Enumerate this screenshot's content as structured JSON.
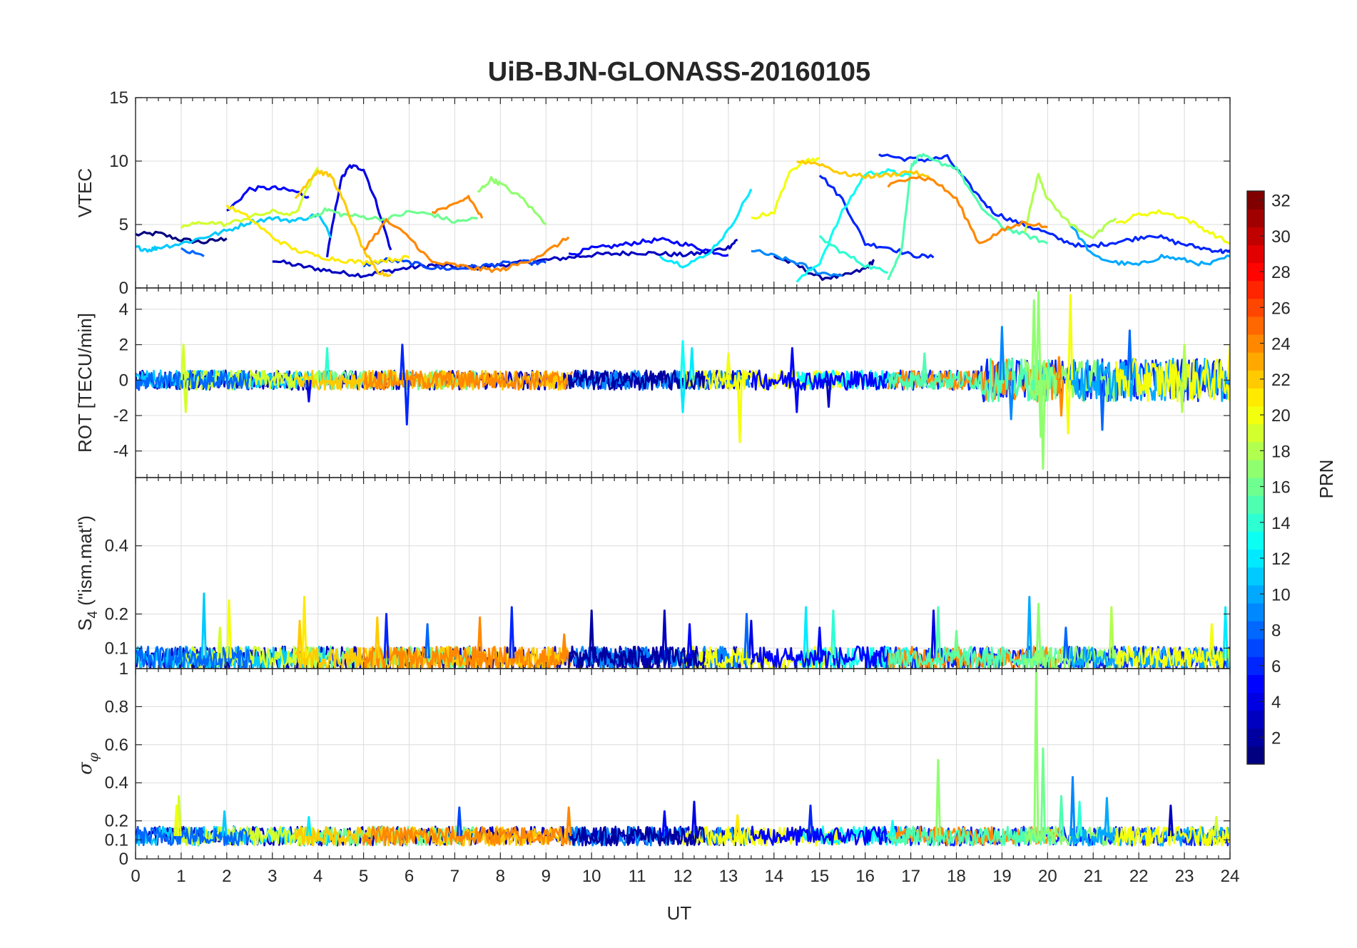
{
  "title": "UiB-BJN-GLONASS-20160105",
  "colorbar": {
    "label": "PRN",
    "range": [
      1,
      32
    ],
    "ticks": [
      2,
      4,
      6,
      8,
      10,
      12,
      14,
      16,
      18,
      20,
      22,
      24,
      26,
      28,
      30,
      32
    ],
    "colormap": "jet"
  },
  "chart_data": [
    {
      "type": "line",
      "id": "vtec",
      "ylabel": "VTEC",
      "ylim": [
        0,
        15
      ],
      "yticks": [
        0,
        5,
        10,
        15
      ],
      "grid": true,
      "series": [
        {
          "prn": 1,
          "x": [
            0,
            0.5,
            1,
            1.5,
            2
          ],
          "y": [
            4.2,
            4.3,
            3.8,
            3.6,
            3.9
          ]
        },
        {
          "prn": 3,
          "x": [
            3,
            3.5,
            4,
            4.5,
            5,
            5.5,
            6,
            6.5,
            7,
            7.5,
            8,
            8.5,
            9,
            9.5,
            10,
            10.5,
            11,
            11.5,
            12,
            12.5,
            13,
            13.2
          ],
          "y": [
            2.2,
            1.8,
            1.5,
            1.2,
            1.0,
            1.3,
            1.6,
            1.8,
            1.7,
            1.6,
            1.8,
            2.0,
            2.2,
            2.4,
            2.6,
            2.7,
            2.8,
            2.7,
            2.6,
            2.8,
            3.2,
            3.8
          ]
        },
        {
          "prn": 2,
          "x": [
            14,
            14.5,
            15,
            15.5,
            16,
            16.2
          ],
          "y": [
            2.5,
            1.8,
            0.8,
            0.9,
            1.5,
            2.2
          ]
        },
        {
          "prn": 4,
          "x": [
            4.2,
            4.5,
            4.7,
            5,
            5.3,
            5.6
          ],
          "y": [
            2.5,
            8.5,
            9.6,
            9.4,
            6.5,
            3.0
          ]
        },
        {
          "prn": 5,
          "x": [
            2,
            2.5,
            3,
            3.5,
            3.8
          ],
          "y": [
            6.0,
            7.8,
            7.9,
            7.6,
            7.2
          ]
        },
        {
          "prn": 5,
          "x": [
            9.5,
            10,
            10.5,
            11,
            11.5,
            12,
            12.5,
            13
          ],
          "y": [
            2.6,
            3.1,
            3.3,
            3.6,
            3.8,
            3.5,
            3.0,
            2.6
          ]
        },
        {
          "prn": 6,
          "x": [
            15,
            15.5,
            16,
            16.5,
            17,
            17.5
          ],
          "y": [
            9.0,
            7.0,
            3.5,
            3.2,
            2.6,
            2.4
          ]
        },
        {
          "prn": 6,
          "x": [
            16.3,
            16.8,
            17.3,
            17.8,
            18.3,
            18.8,
            19.3,
            19.8,
            20.3,
            20.8,
            21.3,
            21.8,
            22.3,
            22.8,
            23.3,
            23.8,
            24
          ],
          "y": [
            10.6,
            10.2,
            10.1,
            10.3,
            8.0,
            6.0,
            5.2,
            4.6,
            3.8,
            3.2,
            3.5,
            3.8,
            4.2,
            3.6,
            3.2,
            2.9,
            2.8
          ]
        },
        {
          "prn": 7,
          "x": [
            5,
            5.5,
            6,
            6.5,
            7,
            7.5,
            8,
            8.5,
            9
          ],
          "y": [
            1.8,
            2.2,
            2.0,
            1.6,
            1.5,
            1.7,
            1.9,
            2.0,
            2.0
          ]
        },
        {
          "prn": 8,
          "x": [
            1,
            1.5
          ],
          "y": [
            3.0,
            2.5
          ]
        },
        {
          "prn": 9,
          "x": [
            13.5,
            14,
            14.5,
            15,
            15.5
          ],
          "y": [
            3.0,
            2.5,
            2.0,
            1.2,
            1.0
          ]
        },
        {
          "prn": 10,
          "x": [
            20.5,
            21,
            21.5,
            22,
            22.5,
            23,
            23.5,
            24
          ],
          "y": [
            5.0,
            2.5,
            2.0,
            1.8,
            2.5,
            2.2,
            1.8,
            2.5
          ]
        },
        {
          "prn": 11,
          "x": [
            0,
            0.3,
            0.5,
            1,
            1.5,
            2,
            2.5,
            3,
            3.5,
            4,
            4.3
          ],
          "y": [
            3.2,
            3.0,
            3.2,
            3.5,
            4.0,
            4.5,
            5.2,
            5.5,
            5.3,
            5.8,
            4.0
          ]
        },
        {
          "prn": 12,
          "x": [
            11.5,
            12,
            12.5,
            13,
            13.5
          ],
          "y": [
            2.5,
            1.8,
            2.5,
            4.5,
            7.8
          ]
        },
        {
          "prn": 13,
          "x": [
            14.5,
            15,
            15.5,
            16,
            16.5,
            17
          ],
          "y": [
            0.5,
            2.0,
            6.0,
            9.0,
            9.2,
            8.8
          ]
        },
        {
          "prn": 14,
          "x": [
            15,
            15.5,
            16,
            16.5
          ],
          "y": [
            4.0,
            2.8,
            1.8,
            1.2
          ]
        },
        {
          "prn": 15,
          "x": [
            16.5,
            16.8,
            17,
            17.2,
            17.5,
            18,
            18.5,
            19,
            19.5,
            20
          ],
          "y": [
            0.8,
            3.0,
            9.5,
            10.5,
            10.0,
            9.5,
            6.5,
            4.8,
            4.2,
            3.5
          ]
        },
        {
          "prn": 16,
          "x": [
            3.8,
            4.2,
            4.5,
            5,
            5.5,
            6,
            6.5,
            7,
            7.5
          ],
          "y": [
            5.5,
            6.2,
            5.8,
            5.6,
            5.4,
            6.0,
            5.8,
            5.2,
            5.5
          ]
        },
        {
          "prn": 17,
          "x": [
            7.5,
            7.8,
            8,
            8.5,
            9
          ],
          "y": [
            7.5,
            8.6,
            8.2,
            7.0,
            5.0
          ]
        },
        {
          "prn": 18,
          "x": [
            19.5,
            19.8,
            20,
            20.5,
            21,
            21.5
          ],
          "y": [
            4.5,
            9.0,
            7.0,
            5.0,
            4.0,
            5.5
          ]
        },
        {
          "prn": 19,
          "x": [
            1,
            1.5,
            2,
            2.5,
            3,
            3.5,
            4
          ],
          "y": [
            4.8,
            5.2,
            5.0,
            5.6,
            6.0,
            5.8,
            9.5
          ]
        },
        {
          "prn": 20,
          "x": [
            13.5,
            14,
            14.3,
            14.6,
            15
          ],
          "y": [
            5.5,
            6.0,
            8.8,
            10.0,
            10.2
          ]
        },
        {
          "prn": 20,
          "x": [
            21.5,
            22,
            22.5,
            23,
            23.5,
            24
          ],
          "y": [
            5.0,
            5.8,
            6.0,
            5.5,
            4.5,
            3.5
          ]
        },
        {
          "prn": 21,
          "x": [
            2,
            2.5,
            3,
            3.5,
            4,
            4.5,
            5,
            5.5,
            6
          ],
          "y": [
            6.5,
            5.5,
            4.0,
            3.0,
            2.5,
            2.2,
            2.0,
            2.2,
            2.4
          ]
        },
        {
          "prn": 22,
          "x": [
            3.5,
            3.8,
            4,
            4.3,
            4.6,
            5,
            5.3,
            5.6
          ],
          "y": [
            7.0,
            8.5,
            9.2,
            8.8,
            6.5,
            3.0,
            1.2,
            1.0
          ]
        },
        {
          "prn": 22,
          "x": [
            14.5,
            15,
            15.5,
            16,
            16.5,
            17,
            17.5
          ],
          "y": [
            10.0,
            9.8,
            9.0,
            8.8,
            8.9,
            9.2,
            8.5
          ]
        },
        {
          "prn": 24,
          "x": [
            5,
            5.5,
            6,
            6.5,
            7,
            7.5,
            8,
            8.5,
            9,
            9.5
          ],
          "y": [
            3.0,
            5.3,
            4.0,
            2.0,
            1.8,
            1.5,
            1.4,
            2.0,
            2.8,
            4.0
          ]
        },
        {
          "prn": 24,
          "x": [
            6.5,
            7,
            7.3,
            7.6
          ],
          "y": [
            6.0,
            6.5,
            7.2,
            5.5
          ]
        },
        {
          "prn": 24,
          "x": [
            16.5,
            17,
            17.5,
            18,
            18.5,
            19,
            19.5,
            20
          ],
          "y": [
            8.0,
            8.8,
            8.5,
            7.0,
            3.5,
            4.5,
            5.2,
            4.8
          ]
        }
      ]
    },
    {
      "type": "line",
      "id": "rot",
      "ylabel": "ROT [TECU/min]",
      "ylim": [
        -5.5,
        5.2
      ],
      "yticks": [
        -4,
        -2,
        0,
        2,
        4
      ],
      "grid": true,
      "spikes": [
        {
          "prn": 6,
          "x": 5.95,
          "y": -2.5
        },
        {
          "prn": 6,
          "x": 5.85,
          "y": 2.0
        },
        {
          "prn": 19,
          "x": 1.05,
          "y": 2.0
        },
        {
          "prn": 19,
          "x": 1.1,
          "y": -1.8
        },
        {
          "prn": 20,
          "x": 13.25,
          "y": -3.5
        },
        {
          "prn": 20,
          "x": 13.0,
          "y": 1.5
        },
        {
          "prn": 12,
          "x": 12.2,
          "y": 1.8
        },
        {
          "prn": 12,
          "x": 12.0,
          "y": -1.8
        },
        {
          "prn": 5,
          "x": 14.5,
          "y": -1.8
        },
        {
          "prn": 5,
          "x": 14.4,
          "y": 1.8
        },
        {
          "prn": 9,
          "x": 19.0,
          "y": 3.0
        },
        {
          "prn": 9,
          "x": 19.2,
          "y": -2.2
        },
        {
          "prn": 17,
          "x": 19.8,
          "y": 5.0
        },
        {
          "prn": 17,
          "x": 19.9,
          "y": -5.0
        },
        {
          "prn": 17,
          "x": 19.7,
          "y": 4.5
        },
        {
          "prn": 17,
          "x": 19.85,
          "y": -3.2
        },
        {
          "prn": 20,
          "x": 20.5,
          "y": 4.8
        },
        {
          "prn": 20,
          "x": 20.45,
          "y": -3.0
        },
        {
          "prn": 8,
          "x": 21.2,
          "y": -2.8
        },
        {
          "prn": 8,
          "x": 21.8,
          "y": 2.8
        },
        {
          "prn": 18,
          "x": 23.0,
          "y": 2.0
        },
        {
          "prn": 18,
          "x": 22.95,
          "y": -1.8
        },
        {
          "prn": 24,
          "x": 20.3,
          "y": -2.0
        },
        {
          "prn": 24,
          "x": 20.25,
          "y": 1.3
        },
        {
          "prn": 4,
          "x": 3.8,
          "y": -1.2
        },
        {
          "prn": 14,
          "x": 4.2,
          "y": 1.8
        },
        {
          "prn": 13,
          "x": 12.0,
          "y": 2.2
        },
        {
          "prn": 15,
          "x": 17.3,
          "y": 1.5
        },
        {
          "prn": 21,
          "x": 24.0,
          "y": 2.0
        },
        {
          "prn": 3,
          "x": 15.2,
          "y": -1.5
        }
      ]
    },
    {
      "type": "line",
      "id": "s4",
      "ylabel": "S₄ (\"ism.mat\")",
      "ylim": [
        0.04,
        0.6
      ],
      "yticks": [
        0.1,
        0.2,
        0.4
      ],
      "grid": true,
      "spikes": [
        {
          "prn": 11,
          "x": 1.5,
          "y": 0.26
        },
        {
          "prn": 20,
          "x": 2.05,
          "y": 0.24
        },
        {
          "prn": 19,
          "x": 1.85,
          "y": 0.16
        },
        {
          "prn": 21,
          "x": 3.7,
          "y": 0.25
        },
        {
          "prn": 22,
          "x": 3.6,
          "y": 0.18
        },
        {
          "prn": 6,
          "x": 5.5,
          "y": 0.2
        },
        {
          "prn": 22,
          "x": 5.3,
          "y": 0.19
        },
        {
          "prn": 8,
          "x": 6.4,
          "y": 0.17
        },
        {
          "prn": 24,
          "x": 7.55,
          "y": 0.19
        },
        {
          "prn": 6,
          "x": 8.25,
          "y": 0.22
        },
        {
          "prn": 2,
          "x": 10.0,
          "y": 0.21
        },
        {
          "prn": 3,
          "x": 11.6,
          "y": 0.21
        },
        {
          "prn": 5,
          "x": 12.15,
          "y": 0.17
        },
        {
          "prn": 4,
          "x": 13.5,
          "y": 0.18
        },
        {
          "prn": 8,
          "x": 13.4,
          "y": 0.2
        },
        {
          "prn": 12,
          "x": 14.7,
          "y": 0.22
        },
        {
          "prn": 5,
          "x": 15.0,
          "y": 0.16
        },
        {
          "prn": 14,
          "x": 15.3,
          "y": 0.21
        },
        {
          "prn": 4,
          "x": 17.5,
          "y": 0.21
        },
        {
          "prn": 15,
          "x": 17.6,
          "y": 0.22
        },
        {
          "prn": 10,
          "x": 19.6,
          "y": 0.25
        },
        {
          "prn": 17,
          "x": 19.8,
          "y": 0.23
        },
        {
          "prn": 8,
          "x": 20.4,
          "y": 0.16
        },
        {
          "prn": 18,
          "x": 21.4,
          "y": 0.22
        },
        {
          "prn": 20,
          "x": 23.6,
          "y": 0.17
        },
        {
          "prn": 12,
          "x": 23.9,
          "y": 0.22
        },
        {
          "prn": 24,
          "x": 9.4,
          "y": 0.14
        },
        {
          "prn": 16,
          "x": 18.0,
          "y": 0.15
        }
      ]
    },
    {
      "type": "line",
      "id": "sigma_phi",
      "ylabel": "σ_φ",
      "ylim": [
        0,
        1
      ],
      "yticks": [
        0,
        0.1,
        0.2,
        0.4,
        0.6,
        0.8,
        1
      ],
      "grid": true,
      "spikes": [
        {
          "prn": 19,
          "x": 0.95,
          "y": 0.33
        },
        {
          "prn": 20,
          "x": 0.9,
          "y": 0.28
        },
        {
          "prn": 11,
          "x": 1.95,
          "y": 0.25
        },
        {
          "prn": 12,
          "x": 3.8,
          "y": 0.22
        },
        {
          "prn": 7,
          "x": 7.1,
          "y": 0.27
        },
        {
          "prn": 24,
          "x": 9.5,
          "y": 0.27
        },
        {
          "prn": 4,
          "x": 12.25,
          "y": 0.3
        },
        {
          "prn": 6,
          "x": 14.8,
          "y": 0.28
        },
        {
          "prn": 17,
          "x": 17.6,
          "y": 0.52
        },
        {
          "prn": 17,
          "x": 19.75,
          "y": 1.0
        },
        {
          "prn": 16,
          "x": 19.9,
          "y": 0.58
        },
        {
          "prn": 15,
          "x": 20.3,
          "y": 0.33
        },
        {
          "prn": 9,
          "x": 20.55,
          "y": 0.43
        },
        {
          "prn": 14,
          "x": 20.7,
          "y": 0.3
        },
        {
          "prn": 10,
          "x": 21.3,
          "y": 0.32
        },
        {
          "prn": 3,
          "x": 22.7,
          "y": 0.28
        },
        {
          "prn": 19,
          "x": 23.7,
          "y": 0.22
        },
        {
          "prn": 5,
          "x": 11.6,
          "y": 0.25
        },
        {
          "prn": 13,
          "x": 16.6,
          "y": 0.2
        },
        {
          "prn": 21,
          "x": 13.2,
          "y": 0.23
        }
      ]
    }
  ],
  "xaxis": {
    "label": "UT",
    "range": [
      0,
      24
    ],
    "ticks": [
      0,
      1,
      2,
      3,
      4,
      5,
      6,
      7,
      8,
      9,
      10,
      11,
      12,
      13,
      14,
      15,
      16,
      17,
      18,
      19,
      20,
      21,
      22,
      23,
      24
    ]
  },
  "noise_traces": [
    {
      "prn": 3,
      "start": 0,
      "end": 13.5
    },
    {
      "prn": 6,
      "start": 16.3,
      "end": 24
    },
    {
      "prn": 11,
      "start": 0,
      "end": 4.3
    },
    {
      "prn": 16,
      "start": 3.8,
      "end": 7.5
    },
    {
      "prn": 19,
      "start": 1,
      "end": 4
    },
    {
      "prn": 22,
      "start": 3.5,
      "end": 9.5
    },
    {
      "prn": 24,
      "start": 5,
      "end": 9.6
    },
    {
      "prn": 9,
      "start": 9.5,
      "end": 13.5
    },
    {
      "prn": 20,
      "start": 12,
      "end": 15.5
    },
    {
      "prn": 13,
      "start": 14.5,
      "end": 17
    },
    {
      "prn": 24,
      "start": 16.5,
      "end": 20.3
    },
    {
      "prn": 15,
      "start": 16.5,
      "end": 20.2
    },
    {
      "prn": 17,
      "start": 19.5,
      "end": 21.5
    },
    {
      "prn": 10,
      "start": 20.5,
      "end": 24
    },
    {
      "prn": 20,
      "start": 21.5,
      "end": 24
    },
    {
      "prn": 5,
      "start": 13.5,
      "end": 16.5
    },
    {
      "prn": 8,
      "start": 0,
      "end": 2.5
    },
    {
      "prn": 2,
      "start": 9.5,
      "end": 12.5
    }
  ]
}
